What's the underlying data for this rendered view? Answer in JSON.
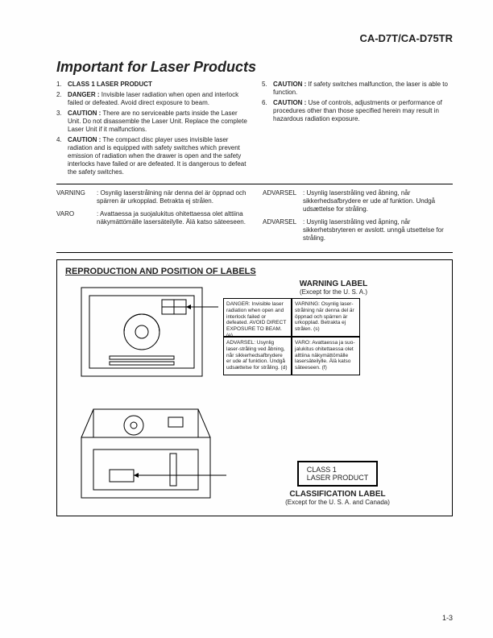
{
  "model": "CA-D7T/CA-D75TR",
  "title": "Important for Laser Products",
  "left_items": [
    {
      "n": "1.",
      "head": "CLASS 1 LASER PRODUCT",
      "body": ""
    },
    {
      "n": "2.",
      "head": "DANGER :",
      "body": "Invisible laser radiation when open and interlock failed or defeated. Avoid direct exposure to beam."
    },
    {
      "n": "3.",
      "head": "CAUTION :",
      "body": "There are no serviceable parts inside the Laser Unit. Do not disassemble the Laser Unit. Replace the complete Laser Unit if it malfunctions."
    },
    {
      "n": "4.",
      "head": "CAUTION :",
      "body": "The compact disc player uses invisible laser radiation and is equipped with safety switches which prevent emission of radiation when the drawer is open and the safety interlocks have failed or are defeated. It is dangerous to defeat the safety switches."
    }
  ],
  "right_items": [
    {
      "n": "5.",
      "head": "CAUTION :",
      "body": "If safety switches malfunction, the laser is able to function."
    },
    {
      "n": "6.",
      "head": "CAUTION :",
      "body": "Use of controls, adjustments or performance of procedures other than those specified herein may result in hazardous radiation exposure."
    }
  ],
  "lang_left": [
    {
      "k": "VARNING",
      "t": ": Osynlig laserstrålning när denna del är öppnad och spärren är urkopplad. Betrakta ej strålen."
    },
    {
      "k": "VARO",
      "t": ": Avattaessa ja suojalukitus ohitettaessa olet alttiina näkymättömälle lasersäteilylle. Älä katso säteeseen."
    }
  ],
  "lang_right": [
    {
      "k": "ADVARSEL",
      "t": ": Usynlig laserstråling ved åbning, når sikkerhedsafbrydere er ude af funktion. Undgå udsættelse for stråling."
    },
    {
      "k": "ADVARSEL",
      "t": ": Usynlig laserstråling ved åpning, når sikkerhetsbryteren er avslott. unngå utsettelse for stråling."
    }
  ],
  "box_title": "REPRODUCTION AND POSITION OF LABELS",
  "warning_label": {
    "head": "WARNING LABEL",
    "sub": "(Except for the U. S. A.)"
  },
  "quad": {
    "tl": "DANGER: Invisible laser radiation when open and interlock failed or defeated. AVOID DIRECT EXPOSURE TO BEAM.          (e)",
    "tr": "VARNING: Osynlig laser-strålning när denna del är öppnad och spärren är urkopplad. Betrakta ej strålen.                     (s)",
    "bl": "ADVARSEL: Usynlig laser-stråling ved åbning, når sikkerhedsafbrydere er ude af funktion. Undgå udsættelse for stråling.   (d)",
    "br": "VARO: Avattaessa ja suo-jalukitus ohitettaessa olet alttiina näkymättömälle lasersäteilylle. Älä katso säteeseen.              (f)"
  },
  "class_label": {
    "line1": "CLASS     1",
    "line2": "LASER   PRODUCT",
    "head": "CLASSIFICATION LABEL",
    "sub": "(Except for the U. S. A. and Canada)"
  },
  "pagenum": "1-3"
}
